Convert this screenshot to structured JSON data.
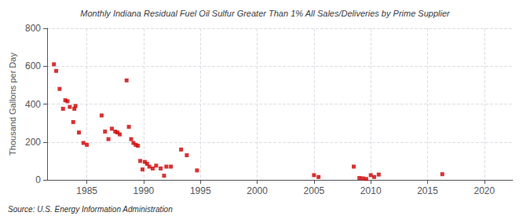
{
  "chart_data": {
    "type": "scatter",
    "title": "Monthly Indiana Residual Fuel Oil Sulfur Greater Than 1% All Sales/Deliveries by Prime Supplier",
    "ylabel": "Thousand Gallons per Day",
    "annotations": [
      "Source: U.S. Energy Information Administration"
    ],
    "color": "#cc0000",
    "marker": "square",
    "grid": true,
    "xlim": [
      1981.5,
      2022.5
    ],
    "ylim": [
      0,
      800
    ],
    "xticks": [
      1985,
      1990,
      1995,
      2000,
      2005,
      2010,
      2015,
      2020
    ],
    "yticks": [
      0,
      200,
      400,
      600,
      800
    ],
    "x": [
      1982.1,
      1982.3,
      1982.6,
      1982.9,
      1983.1,
      1983.3,
      1983.5,
      1983.8,
      1983.9,
      1984.0,
      1984.3,
      1984.7,
      1985.0,
      1986.3,
      1986.6,
      1986.9,
      1987.2,
      1987.5,
      1987.7,
      1987.9,
      1988.5,
      1988.7,
      1988.9,
      1989.1,
      1989.3,
      1989.5,
      1989.7,
      1989.9,
      1990.1,
      1990.3,
      1990.5,
      1990.8,
      1991.1,
      1991.5,
      1991.8,
      1992.0,
      1992.4,
      1993.3,
      1993.8,
      1994.7,
      2005.0,
      2005.4,
      2008.5,
      2009.0,
      2009.3,
      2009.6,
      2010.0,
      2010.3,
      2010.7,
      2016.3
    ],
    "values": [
      610,
      575,
      480,
      375,
      420,
      415,
      385,
      305,
      375,
      390,
      250,
      195,
      185,
      340,
      255,
      215,
      270,
      255,
      250,
      240,
      525,
      280,
      215,
      195,
      185,
      180,
      100,
      55,
      95,
      85,
      70,
      60,
      75,
      60,
      22,
      70,
      70,
      160,
      130,
      50,
      25,
      15,
      70,
      10,
      8,
      5,
      25,
      15,
      28,
      30
    ]
  }
}
